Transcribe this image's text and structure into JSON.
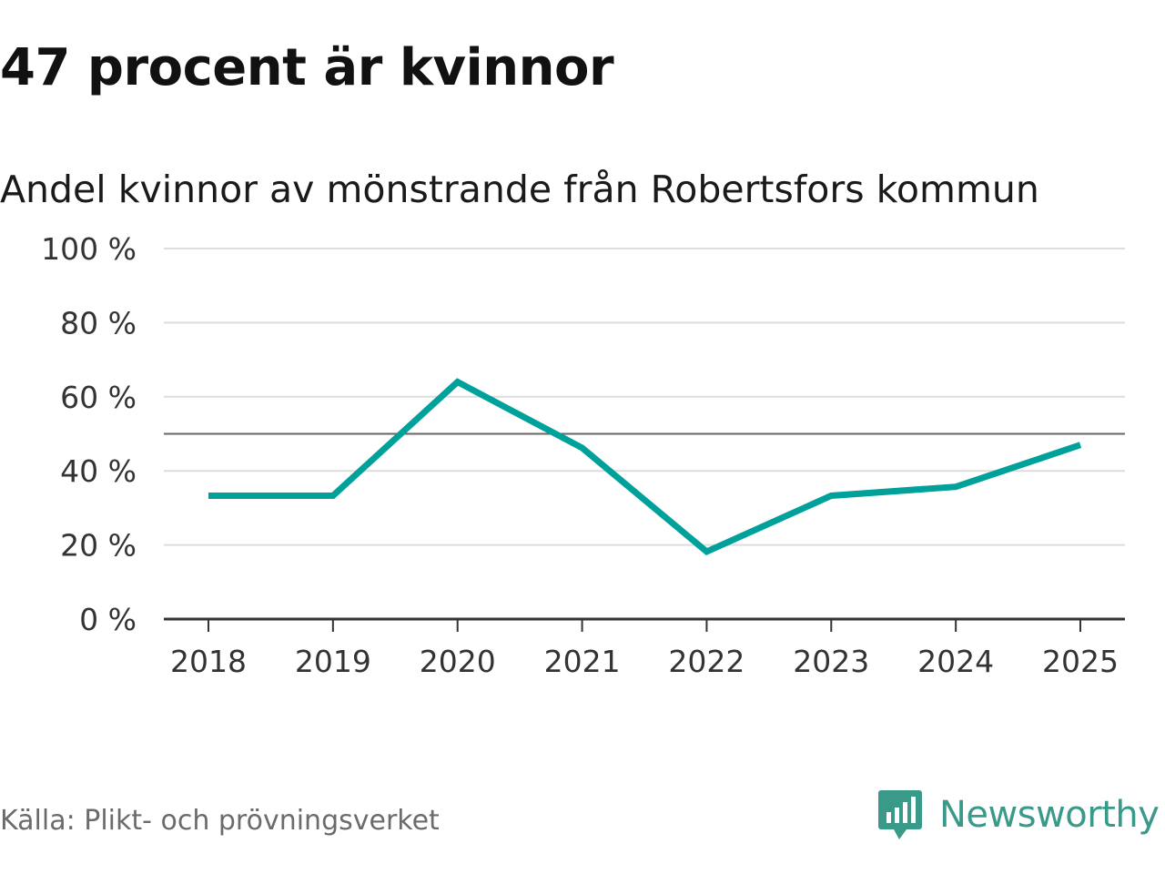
{
  "title": "47 procent är kvinnor",
  "subtitle": "Andel kvinnor av mönstrande från Robertsfors kommun",
  "source": "Källa: Plikt- och prövningsverket",
  "brand": "Newsworthy",
  "colors": {
    "line": "#00a19a",
    "grid": "#dddddd",
    "reference": "#666666",
    "axis": "#333333",
    "brand": "#3a9a8a"
  },
  "chart_data": {
    "type": "line",
    "title": "47 procent är kvinnor",
    "subtitle": "Andel kvinnor av mönstrande från Robertsfors kommun",
    "xlabel": "",
    "ylabel": "",
    "categories": [
      "2018",
      "2019",
      "2020",
      "2021",
      "2022",
      "2023",
      "2024",
      "2025"
    ],
    "series": [
      {
        "name": "Andel kvinnor",
        "values": [
          33.3,
          33.3,
          64,
          46.2,
          18.2,
          33.3,
          35.7,
          47
        ]
      }
    ],
    "ylim": [
      0,
      100
    ],
    "yticks": [
      0,
      20,
      40,
      60,
      80,
      100
    ],
    "ytick_labels": [
      "0 %",
      "20 %",
      "40 %",
      "60 %",
      "80 %",
      "100 %"
    ],
    "reference_line": 50,
    "grid": true
  }
}
